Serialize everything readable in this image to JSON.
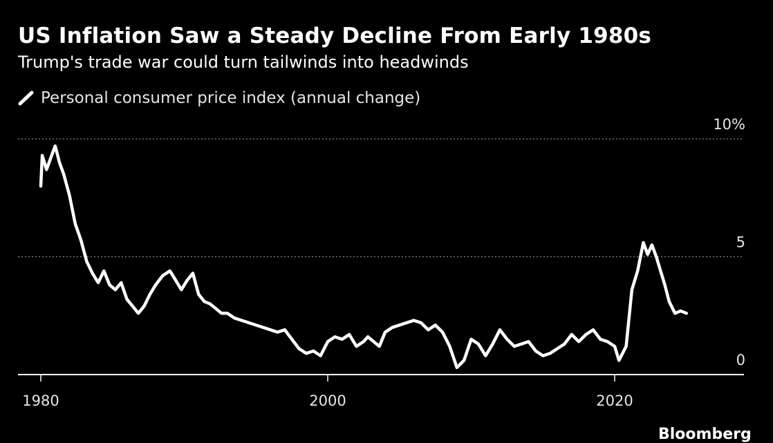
{
  "header": {
    "title": "US Inflation Saw a Steady Decline From Early 1980s",
    "subtitle": "Trump's trade war could turn tailwinds into headwinds"
  },
  "footer": {
    "source_logo": "Bloomberg"
  },
  "chart_data": {
    "type": "line",
    "title": "US Inflation Saw a Steady Decline From Early 1980s",
    "subtitle": "Trump's trade war could turn tailwinds into headwinds",
    "xlabel": "",
    "ylabel": "",
    "x_ticks": [
      "1980",
      "2000",
      "2020"
    ],
    "y_ticks": [
      "0",
      "5",
      "10%"
    ],
    "y_tick_values": [
      0,
      5,
      10
    ],
    "xlim": [
      1979,
      2030
    ],
    "ylim": [
      0,
      10
    ],
    "grid": "horizontal dotted",
    "legend_position": "top-left",
    "line_color": "#ffffff",
    "series": [
      {
        "name": "Personal consumer price index (annual change)",
        "x": [
          1980.0,
          1980.1,
          1980.4,
          1980.7,
          1981.0,
          1981.3,
          1981.6,
          1982.0,
          1982.4,
          1982.8,
          1983.2,
          1983.6,
          1984.0,
          1984.4,
          1984.8,
          1985.2,
          1985.6,
          1986.0,
          1986.4,
          1986.8,
          1987.2,
          1987.6,
          1988.0,
          1988.5,
          1989.0,
          1989.4,
          1989.8,
          1990.2,
          1990.6,
          1991.0,
          1991.4,
          1991.8,
          1992.2,
          1992.6,
          1993.0,
          1993.5,
          1994.0,
          1994.5,
          1995.0,
          1995.5,
          1996.0,
          1996.5,
          1997.0,
          1997.5,
          1998.0,
          1998.5,
          1999.0,
          1999.5,
          2000.0,
          2000.5,
          2001.0,
          2001.5,
          2002.0,
          2002.5,
          2002.8,
          2003.2,
          2003.6,
          2004.0,
          2004.5,
          2005.0,
          2005.5,
          2006.0,
          2006.5,
          2007.0,
          2007.5,
          2008.0,
          2008.5,
          2009.0,
          2009.5,
          2010.0,
          2010.5,
          2011.0,
          2011.5,
          2012.0,
          2012.5,
          2013.0,
          2013.5,
          2014.0,
          2014.5,
          2015.0,
          2015.5,
          2016.0,
          2016.5,
          2017.0,
          2017.5,
          2018.0,
          2018.5,
          2019.0,
          2019.5,
          2020.0,
          2020.3,
          2020.8,
          2021.2,
          2021.6,
          2022.0,
          2022.3,
          2022.6,
          2022.9,
          2023.2,
          2023.5,
          2023.8,
          2024.2,
          2024.6,
          2025.0
        ],
        "y": [
          8.0,
          9.3,
          8.7,
          9.2,
          9.7,
          9.0,
          8.5,
          7.6,
          6.4,
          5.7,
          4.8,
          4.3,
          3.9,
          4.4,
          3.8,
          3.6,
          3.9,
          3.2,
          2.9,
          2.6,
          2.9,
          3.4,
          3.8,
          4.2,
          4.4,
          4.0,
          3.6,
          4.0,
          4.3,
          3.4,
          3.1,
          3.0,
          2.8,
          2.6,
          2.6,
          2.4,
          2.3,
          2.2,
          2.1,
          2.0,
          1.9,
          1.8,
          1.9,
          1.5,
          1.1,
          0.9,
          1.0,
          0.8,
          1.4,
          1.6,
          1.5,
          1.7,
          1.2,
          1.4,
          1.6,
          1.4,
          1.2,
          1.8,
          2.0,
          2.1,
          2.2,
          2.3,
          2.2,
          1.9,
          2.1,
          1.8,
          1.2,
          0.3,
          0.6,
          1.5,
          1.3,
          0.8,
          1.3,
          1.9,
          1.5,
          1.2,
          1.3,
          1.4,
          1.0,
          0.8,
          0.9,
          1.1,
          1.3,
          1.7,
          1.4,
          1.7,
          1.9,
          1.5,
          1.4,
          1.2,
          0.6,
          1.2,
          3.6,
          4.4,
          5.6,
          5.1,
          5.5,
          5.0,
          4.4,
          3.8,
          3.1,
          2.6,
          2.7,
          2.6
        ]
      }
    ]
  }
}
